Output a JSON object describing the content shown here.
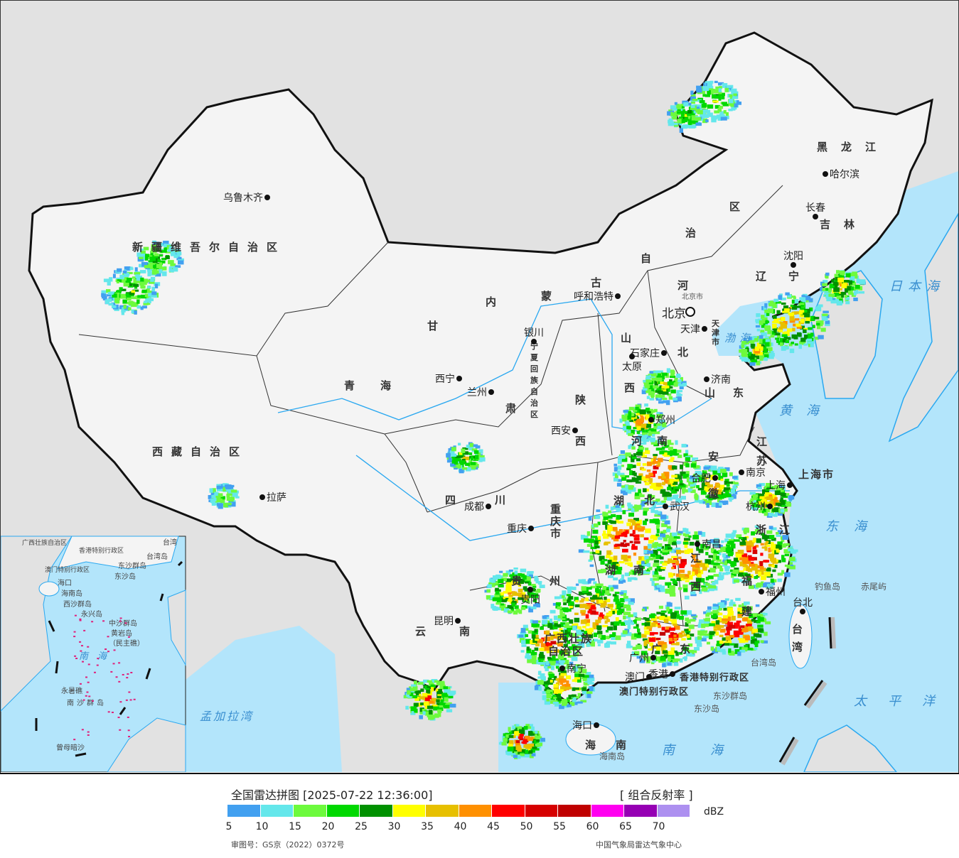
{
  "title": "全国雷达拼图 [2025-07-22 12:36:00]",
  "product": "[ 组合反射率 ]",
  "unit": "dBZ",
  "approval": "审图号：GS京（2022）0372号",
  "source": "中国气象局雷达气象中心",
  "legend": {
    "colors": [
      "#42a0f0",
      "#64e7eb",
      "#6dfa3d",
      "#00d800",
      "#009100",
      "#ffff00",
      "#e7c000",
      "#ff9000",
      "#ff0000",
      "#d60000",
      "#c00000",
      "#ff00f0",
      "#9600b4",
      "#ad90f0"
    ],
    "ticks": [
      "5",
      "10",
      "15",
      "20",
      "25",
      "30",
      "35",
      "40",
      "45",
      "50",
      "55",
      "60",
      "65",
      "70"
    ]
  },
  "colors": {
    "land": "#f4f4f4",
    "neighbor": "#e2e2e2",
    "sea": "#b3e5fb",
    "border": "#111111",
    "river": "#2aa8f0"
  },
  "cities": {
    "urumqi": "乌鲁木齐",
    "lhasa": "拉萨",
    "xining": "西宁",
    "lanzhou": "兰州",
    "yinchuan": "银川",
    "xian": "西安",
    "chengdu": "成都",
    "chongqing": "重庆",
    "kunming": "昆明",
    "guiyang": "贵阳",
    "nanning": "南宁",
    "guangzhou": "广州",
    "hongkong": "香港",
    "macau": "澳门",
    "haikou": "海口",
    "wuhan": "武汉",
    "nanchang": "南昌",
    "fuzhou": "福州",
    "hangzhou": "杭州",
    "nanjing": "南京",
    "shanghai": "上海",
    "hefei": "合肥",
    "zhengzhou": "郑州",
    "jinan": "济南",
    "shijiazhuang": "石家庄",
    "taiyuan": "太原",
    "beijing": "北京",
    "tianjin": "天津",
    "hohhot": "呼和浩特",
    "shenyang": "沈阳",
    "changchun": "长春",
    "harbin": "哈尔滨",
    "taipei": "台北"
  },
  "provinces": {
    "xinjiang": "新疆维吾尔自治区",
    "xizang": "西藏自治区",
    "qinghai": "青　　海",
    "heilongjiang": "黑　龙　江",
    "jilin": "吉　林",
    "shanghai_shi": "上海市",
    "beijing_shi": "北京市",
    "hk_sar": "香港特别行政区",
    "macau_sar": "澳门特别行政区",
    "guangxi1": "广西壮族",
    "guangxi2": "自治区",
    "neimenggu": [
      "内",
      "蒙",
      "古",
      "自",
      "治",
      "区"
    ],
    "gansu": [
      "甘",
      "肃"
    ],
    "ningxia": [
      "宁",
      "夏",
      "回",
      "族",
      "自",
      "治",
      "区"
    ],
    "liaoning": [
      "辽",
      "宁"
    ],
    "hebei": [
      "河",
      "北"
    ],
    "shanxi": [
      "山",
      "西"
    ],
    "shandong": [
      "山",
      "东"
    ],
    "henan": [
      "河",
      "南"
    ],
    "shaanxi": [
      "陕",
      "西"
    ],
    "sichuan": [
      "四",
      "川"
    ],
    "chongqing_shi": [
      "重",
      "庆",
      "市"
    ],
    "hubei": [
      "湖",
      "北"
    ],
    "anhui": [
      "安",
      "徽"
    ],
    "jiangsu": [
      "江",
      "苏"
    ],
    "zhejiang": [
      "浙",
      "江"
    ],
    "jiangxi": [
      "江",
      "西"
    ],
    "hunan": [
      "湖",
      "南"
    ],
    "fujian": [
      "福",
      "建"
    ],
    "guizhou": [
      "贵",
      "州"
    ],
    "yunnan": [
      "云",
      "南"
    ],
    "guangdong": [
      "广",
      "东"
    ],
    "hainan": [
      "海",
      "南"
    ],
    "taiwan": [
      "台",
      "湾"
    ],
    "tianjin_shi": [
      "天",
      "津",
      "市"
    ]
  },
  "seas": {
    "japan": "日本海",
    "yellow": "黄海",
    "east": "东海",
    "pacific": "太平洋",
    "south": "南海",
    "bohai": "渤海",
    "bengal": "孟加拉湾"
  },
  "islands": {
    "diaoyu": "钓鱼岛",
    "chiwei": "赤尾屿",
    "taiwan_island": "台湾岛",
    "dongsha_group": "东沙群岛",
    "dongsha": "东沙岛",
    "hainan_island": "海南岛"
  },
  "inset": {
    "south_sea": "南　海",
    "xisha": "西沙群岛",
    "yongxing": "永兴岛",
    "zhongsha": "中沙群岛",
    "huangyan": "黄岩岛",
    "minzhu": "（民主礁）",
    "yongshu": "永暑礁",
    "nansha": "南沙群岛",
    "zengmu": "曾母暗沙",
    "haikou": "海口",
    "hainan_island": "海南岛",
    "dongsha_group": "东沙群岛",
    "dongsha": "东沙岛",
    "taiwan_island": "台湾岛",
    "taiwan": "台湾",
    "hk_sar": "香港特别行政区",
    "macau_sar": "澳门特别行政区",
    "guangxi": "广西壮族自治区"
  }
}
